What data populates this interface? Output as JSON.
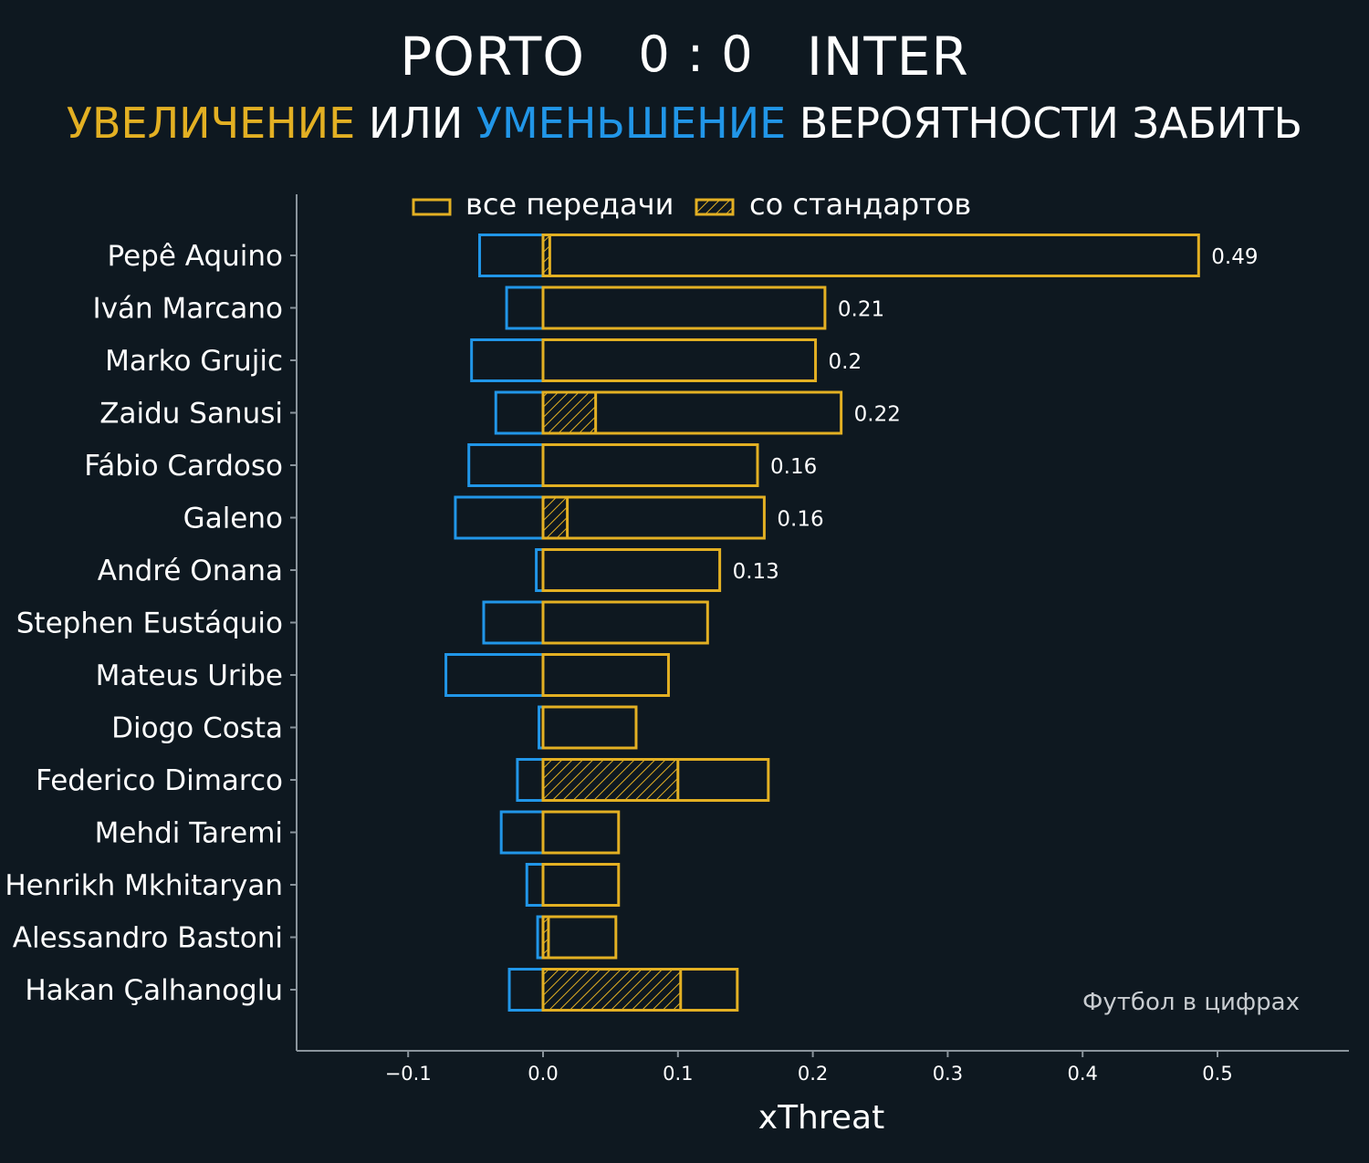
{
  "header": {
    "home_team": "PORTO",
    "score": "0 : 0",
    "away_team": "INTER",
    "subtitle_increase": "УВЕЛИЧЕНИЕ",
    "subtitle_or": "ИЛИ",
    "subtitle_decrease": "УМЕНЬШЕНИЕ",
    "subtitle_rest": "ВЕРОЯТНОСТИ ЗАБИТЬ"
  },
  "watermark": "Футбол в цифрах",
  "colors": {
    "background": "#0e1820",
    "increase": "#e3b023",
    "decrease": "#2196e8",
    "axis": "#8a949c"
  },
  "chart_data": {
    "type": "bar",
    "orientation": "horizontal",
    "xlabel": "xThreat",
    "ylabel": "",
    "xlim": [
      -0.18,
      0.58
    ],
    "xticks": [
      -0.1,
      0.0,
      0.1,
      0.2,
      0.3,
      0.4,
      0.5
    ],
    "xtick_labels": [
      "−0.1",
      "0.0",
      "0.1",
      "0.2",
      "0.3",
      "0.4",
      "0.5"
    ],
    "legend": {
      "position": "top",
      "entries": [
        "все передачи",
        "со стандартов"
      ]
    },
    "categories": [
      "Pepê Aquino",
      "Iván Marcano",
      "Marko Grujic",
      "Zaidu Sanusi",
      "Fábio Cardoso",
      "Galeno",
      "André Onana",
      "Stephen Eustáquio",
      "Mateus Uribe",
      "Diogo Costa",
      "Federico Dimarco",
      "Mehdi Taremi",
      "Henrikh Mkhitaryan",
      "Alessandro Bastoni",
      "Hakan Çalhanoglu"
    ],
    "series": [
      {
        "name": "все передачи",
        "values": [
          0.486,
          0.209,
          0.202,
          0.221,
          0.159,
          0.164,
          0.131,
          0.122,
          0.093,
          0.069,
          0.167,
          0.056,
          0.056,
          0.054,
          0.144
        ]
      },
      {
        "name": "со стандартов",
        "values": [
          0.005,
          0,
          0,
          0.039,
          0,
          0.018,
          0,
          0,
          0,
          0,
          0.1,
          0,
          0,
          0.004,
          0.102
        ]
      },
      {
        "values": [
          -0.047,
          -0.027,
          -0.053,
          -0.035,
          -0.055,
          -0.065,
          -0.005,
          -0.044,
          -0.072,
          -0.003,
          -0.019,
          -0.031,
          -0.012,
          -0.004,
          -0.025
        ]
      }
    ],
    "data_labels": [
      "0.49",
      "0.21",
      "0.2",
      "0.22",
      "0.16",
      "0.16",
      "0.13",
      "",
      "",
      "",
      "",
      "",
      "",
      "",
      ""
    ],
    "grid": false
  }
}
